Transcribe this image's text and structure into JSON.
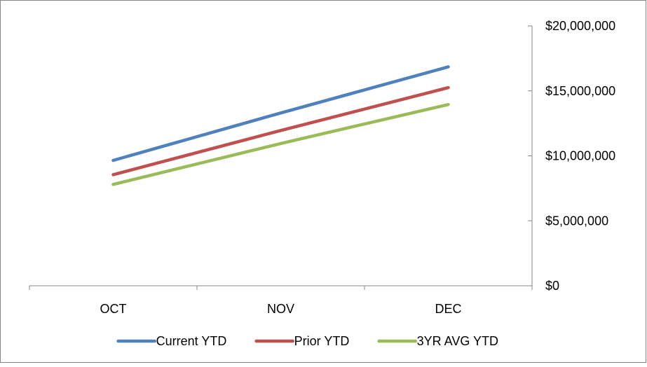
{
  "chart_data": {
    "type": "line",
    "categories": [
      "OCT",
      "NOV",
      "DEC"
    ],
    "series": [
      {
        "name": "Current YTD",
        "color": "#4F81BD",
        "values": [
          9650000,
          13300000,
          16850000
        ]
      },
      {
        "name": "Prior YTD",
        "color": "#C0504D",
        "values": [
          8550000,
          11950000,
          15250000
        ]
      },
      {
        "name": "3YR AVG YTD",
        "color": "#9BBB59",
        "values": [
          7800000,
          10950000,
          13950000
        ]
      }
    ],
    "y_axis": {
      "position": "right",
      "range": [
        0,
        20000000
      ],
      "ticks": [
        "$0",
        "$5,000,000",
        "$10,000,000",
        "$15,000,000",
        "$20,000,000"
      ]
    },
    "grid": false,
    "legend_position": "bottom",
    "title": "",
    "xlabel": "",
    "ylabel": ""
  }
}
